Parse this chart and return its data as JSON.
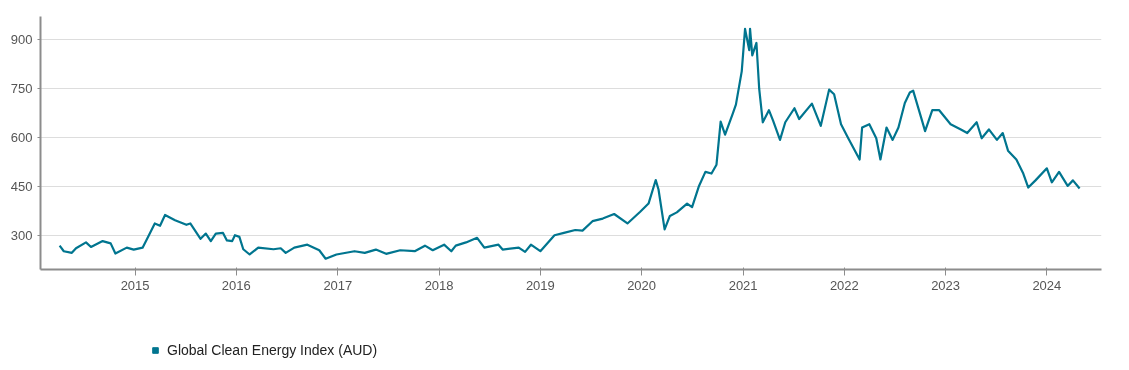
{
  "chart_data": {
    "type": "line",
    "x": [
      "2014-04-04",
      "2014-04-19",
      "2014-05-18",
      "2014-06-02",
      "2014-07-08",
      "2014-07-26",
      "2014-09-06",
      "2014-10-05",
      "2014-10-22",
      "2014-12-02",
      "2014-12-27",
      "2015-01-28",
      "2015-02-18",
      "2015-03-13",
      "2015-04-01",
      "2015-04-19",
      "2015-05-25",
      "2015-07-05",
      "2015-07-19",
      "2015-08-25",
      "2015-09-13",
      "2015-10-01",
      "2015-10-19",
      "2015-11-14",
      "2015-11-28",
      "2015-12-17",
      "2015-12-27",
      "2016-01-12",
      "2016-01-26",
      "2016-02-18",
      "2016-03-20",
      "2016-05-14",
      "2016-06-09",
      "2016-06-27",
      "2016-07-28",
      "2016-09-13",
      "2016-10-26",
      "2016-11-18",
      "2016-12-27",
      "2017-03-02",
      "2017-04-08",
      "2017-05-18",
      "2017-06-24",
      "2017-08-14",
      "2017-10-05",
      "2017-11-11",
      "2017-12-09",
      "2018-01-19",
      "2018-02-14",
      "2018-03-02",
      "2018-04-08",
      "2018-05-18",
      "2018-06-13",
      "2018-08-03",
      "2018-08-18",
      "2018-10-15",
      "2018-11-07",
      "2018-11-28",
      "2019-01-01",
      "2019-02-21",
      "2019-03-27",
      "2019-05-07",
      "2019-06-02",
      "2019-07-08",
      "2019-08-14",
      "2019-09-24",
      "2019-11-11",
      "2019-12-27",
      "2020-01-26",
      "2020-02-21",
      "2020-03-02",
      "2020-03-24",
      "2020-04-12",
      "2020-05-07",
      "2020-06-13",
      "2020-07-01",
      "2020-07-26",
      "2020-08-18",
      "2020-09-09",
      "2020-09-27",
      "2020-10-12",
      "2020-10-28",
      "2020-11-25",
      "2020-12-06",
      "2020-12-27",
      "2021-01-08",
      "2021-01-23",
      "2021-01-26",
      "2021-02-03",
      "2021-02-18",
      "2021-02-28",
      "2021-03-13",
      "2021-04-04",
      "2021-04-19",
      "2021-05-14",
      "2021-06-02",
      "2021-07-05",
      "2021-07-22",
      "2021-09-06",
      "2021-10-08",
      "2021-11-07",
      "2021-11-25",
      "2021-12-20",
      "2022-01-15",
      "2022-02-25",
      "2022-03-06",
      "2022-04-01",
      "2022-04-26",
      "2022-05-11",
      "2022-06-02",
      "2022-06-24",
      "2022-07-15",
      "2022-08-07",
      "2022-08-25",
      "2022-09-06",
      "2022-10-08",
      "2022-10-19",
      "2022-11-14",
      "2022-12-09",
      "2023-01-19",
      "2023-02-25",
      "2023-03-20",
      "2023-04-23",
      "2023-05-11",
      "2023-06-06",
      "2023-07-05",
      "2023-07-26",
      "2023-08-14",
      "2023-09-13",
      "2023-10-08",
      "2023-10-26",
      "2023-11-21",
      "2024-01-01",
      "2024-01-19",
      "2024-02-14",
      "2024-03-16",
      "2024-04-04",
      "2024-04-28"
    ],
    "series": [
      {
        "name": "Global Clean Energy Index (AUD)",
        "color": "#00758f",
        "values": [
          268,
          251,
          246,
          260,
          278,
          264,
          282,
          275,
          244,
          262,
          256,
          262,
          297,
          336,
          329,
          362,
          346,
          332,
          336,
          289,
          305,
          282,
          305,
          307,
          284,
          282,
          300,
          295,
          257,
          241,
          262,
          257,
          260,
          246,
          262,
          271,
          254,
          228,
          241,
          251,
          246,
          256,
          243,
          254,
          251,
          268,
          254,
          271,
          251,
          268,
          278,
          292,
          262,
          271,
          256,
          262,
          249,
          271,
          251,
          300,
          307,
          316,
          314,
          343,
          351,
          365,
          336,
          372,
          397,
          469,
          440,
          318,
          359,
          370,
          397,
          386,
          451,
          494,
          489,
          516,
          648,
          608,
          673,
          700,
          802,
          932,
          867,
          932,
          851,
          889,
          748,
          646,
          683,
          651,
          592,
          646,
          689,
          656,
          703,
          635,
          746,
          732,
          640,
          597,
          532,
          630,
          640,
          597,
          532,
          630,
          592,
          630,
          705,
          737,
          743,
          651,
          619,
          683,
          683,
          640,
          624,
          613,
          646,
          597,
          624,
          592,
          613,
          559,
          532,
          489,
          446,
          468,
          505,
          462,
          494,
          451,
          468,
          443
        ]
      }
    ],
    "xlim": [
      "2014-01-25",
      "2024-07-16"
    ],
    "xticks": [
      {
        "value": "2015-01-01",
        "label": "2015"
      },
      {
        "value": "2016-01-01",
        "label": "2016"
      },
      {
        "value": "2017-01-01",
        "label": "2017"
      },
      {
        "value": "2018-01-01",
        "label": "2018"
      },
      {
        "value": "2019-01-01",
        "label": "2019"
      },
      {
        "value": "2020-01-01",
        "label": "2020"
      },
      {
        "value": "2021-01-01",
        "label": "2021"
      },
      {
        "value": "2022-01-01",
        "label": "2022"
      },
      {
        "value": "2023-01-01",
        "label": "2023"
      },
      {
        "value": "2024-01-01",
        "label": "2024"
      }
    ],
    "ylim": [
      195,
      970
    ],
    "yticks": [
      300,
      450,
      600,
      750,
      900
    ],
    "grid": "y",
    "legend": "bottom left"
  }
}
